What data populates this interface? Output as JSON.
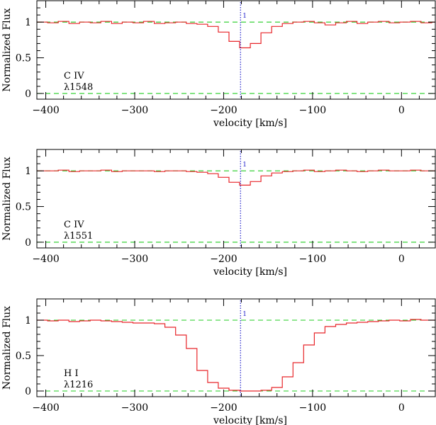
{
  "chart_data": [
    {
      "type": "line",
      "ion_label": "C IV",
      "wave_label": "λ1548",
      "xlabel": "velocity [km/s]",
      "ylabel": "Normalized Flux",
      "xlim": [
        -410,
        38
      ],
      "ylim": [
        -0.08,
        1.3
      ],
      "xticks": [
        -400,
        -300,
        -200,
        -100,
        0
      ],
      "xtick_labels": [
        "−400",
        "−300",
        "−200",
        "−100",
        "0"
      ],
      "yticks": [
        0,
        0.5,
        1
      ],
      "ytick_labels": [
        "0",
        "0.5",
        "1"
      ],
      "continuum_level": 1,
      "zero_level": 0,
      "component": {
        "label": "1",
        "velocity": -181
      },
      "colors": {
        "flux": "#e8262a",
        "guide": "#22cc22",
        "component": "#2222cc"
      },
      "flux": {
        "x": [
          -410,
          -398,
          -386,
          -374,
          -362,
          -350,
          -338,
          -326,
          -314,
          -302,
          -290,
          -278,
          -266,
          -254,
          -242,
          -230,
          -218,
          -206,
          -194,
          -182,
          -170,
          -158,
          -146,
          -134,
          -122,
          -110,
          -98,
          -86,
          -74,
          -62,
          -50,
          -38,
          -26,
          -14,
          -2,
          10,
          22,
          34,
          38
        ],
        "y": [
          1.0,
          0.99,
          1.01,
          0.98,
          1.0,
          0.99,
          1.01,
          0.98,
          1.0,
          0.99,
          1.01,
          0.98,
          0.99,
          1.0,
          0.98,
          0.97,
          0.94,
          0.86,
          0.73,
          0.64,
          0.7,
          0.85,
          0.94,
          0.98,
          1.0,
          1.01,
          0.99,
          0.96,
          0.99,
          1.01,
          0.98,
          1.0,
          1.01,
          0.99,
          1.0,
          1.01,
          0.99,
          1.0,
          1.0
        ]
      }
    },
    {
      "type": "line",
      "ion_label": "C IV",
      "wave_label": "λ1551",
      "xlabel": "velocity [km/s]",
      "ylabel": "Normalized Flux",
      "xlim": [
        -410,
        38
      ],
      "ylim": [
        -0.08,
        1.3
      ],
      "xticks": [
        -400,
        -300,
        -200,
        -100,
        0
      ],
      "xtick_labels": [
        "−400",
        "−300",
        "−200",
        "−100",
        "0"
      ],
      "yticks": [
        0,
        0.5,
        1
      ],
      "ytick_labels": [
        "0",
        "0.5",
        "1"
      ],
      "continuum_level": 1,
      "zero_level": 0,
      "component": {
        "label": "1",
        "velocity": -181
      },
      "colors": {
        "flux": "#e8262a",
        "guide": "#22cc22",
        "component": "#2222cc"
      },
      "flux": {
        "x": [
          -410,
          -398,
          -386,
          -374,
          -362,
          -350,
          -338,
          -326,
          -314,
          -302,
          -290,
          -278,
          -266,
          -254,
          -242,
          -230,
          -218,
          -206,
          -194,
          -182,
          -170,
          -158,
          -146,
          -134,
          -122,
          -110,
          -98,
          -86,
          -74,
          -62,
          -50,
          -38,
          -26,
          -14,
          -2,
          10,
          22,
          34,
          38
        ],
        "y": [
          1.0,
          1.0,
          1.01,
          0.99,
          1.0,
          1.0,
          1.01,
          0.99,
          1.0,
          1.0,
          1.0,
          0.99,
          1.0,
          1.0,
          0.99,
          0.98,
          0.96,
          0.91,
          0.84,
          0.8,
          0.85,
          0.93,
          0.97,
          0.99,
          1.0,
          1.01,
          0.99,
          1.0,
          1.01,
          1.0,
          0.99,
          1.0,
          1.01,
          1.0,
          1.0,
          1.01,
          1.0,
          1.0,
          1.0
        ]
      }
    },
    {
      "type": "line",
      "ion_label": "H I",
      "wave_label": "λ1216",
      "xlabel": "velocity [km/s]",
      "ylabel": "Normalized Flux",
      "xlim": [
        -410,
        38
      ],
      "ylim": [
        -0.08,
        1.3
      ],
      "xticks": [
        -400,
        -300,
        -200,
        -100,
        0
      ],
      "xtick_labels": [
        "−400",
        "−300",
        "−200",
        "−100",
        "0"
      ],
      "yticks": [
        0,
        0.5,
        1
      ],
      "ytick_labels": [
        "0",
        "0.5",
        "1"
      ],
      "continuum_level": 1,
      "zero_level": 0,
      "component": {
        "label": "1",
        "velocity": -181
      },
      "colors": {
        "flux": "#e8262a",
        "guide": "#22cc22",
        "component": "#2222cc"
      },
      "flux": {
        "x": [
          -410,
          -398,
          -386,
          -374,
          -362,
          -350,
          -338,
          -326,
          -314,
          -302,
          -290,
          -278,
          -266,
          -254,
          -242,
          -230,
          -218,
          -206,
          -194,
          -182,
          -170,
          -158,
          -146,
          -134,
          -122,
          -110,
          -98,
          -86,
          -74,
          -62,
          -50,
          -38,
          -26,
          -14,
          -2,
          10,
          22,
          34,
          38
        ],
        "y": [
          1.0,
          0.99,
          1.0,
          0.98,
          0.99,
          1.0,
          0.99,
          0.98,
          0.97,
          0.96,
          0.96,
          0.95,
          0.9,
          0.79,
          0.6,
          0.29,
          0.12,
          0.04,
          0.01,
          0.0,
          0.0,
          0.01,
          0.05,
          0.2,
          0.4,
          0.65,
          0.82,
          0.91,
          0.94,
          0.96,
          0.97,
          0.98,
          0.99,
          1.0,
          0.99,
          1.01,
          1.0,
          1.0,
          1.0
        ]
      }
    }
  ]
}
